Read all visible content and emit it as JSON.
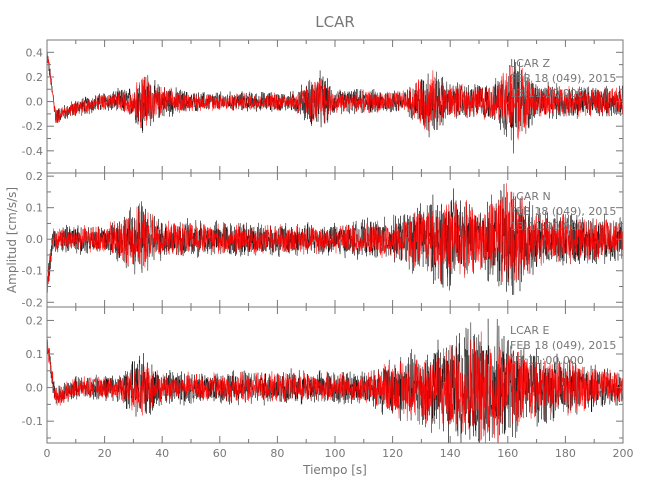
{
  "chart_data": {
    "type": "line",
    "title": "LCAR",
    "xlabel": "Tiempo [s]",
    "ylabel": "Amplitud [cm/s/s]",
    "xlim": [
      0,
      200
    ],
    "xticks": [
      "0",
      "20",
      "40",
      "60",
      "80",
      "100",
      "120",
      "140",
      "160",
      "180",
      "200"
    ],
    "trace_color": "#ff0000",
    "grid": false,
    "panels": [
      {
        "station": "LCAR",
        "component": "Z",
        "date": "FEB 18 (049), 2015",
        "time": "13:11:00.000",
        "ylim": [
          -0.58,
          0.5
        ],
        "yticks": [
          "0.4",
          "0.2",
          "0.0",
          "-0.2",
          "-0.4"
        ],
        "ytick_values": [
          0.4,
          0.2,
          0.0,
          -0.2,
          -0.4
        ],
        "envelope": [
          [
            0,
            0.06
          ],
          [
            20,
            0.08
          ],
          [
            30,
            0.12
          ],
          [
            33,
            0.3
          ],
          [
            38,
            0.15
          ],
          [
            50,
            0.08
          ],
          [
            85,
            0.08
          ],
          [
            95,
            0.25
          ],
          [
            100,
            0.1
          ],
          [
            125,
            0.1
          ],
          [
            133,
            0.3
          ],
          [
            140,
            0.15
          ],
          [
            155,
            0.15
          ],
          [
            162,
            0.4
          ],
          [
            170,
            0.15
          ],
          [
            200,
            0.12
          ]
        ],
        "offset": [
          [
            0,
            0.4
          ],
          [
            3,
            -0.12
          ],
          [
            10,
            -0.05
          ],
          [
            20,
            0
          ],
          [
            200,
            0
          ]
        ]
      },
      {
        "station": "LCAR",
        "component": "N",
        "date": "FEB 18 (049), 2015",
        "time": "13:11:00.000",
        "ylim": [
          -0.215,
          0.21
        ],
        "yticks": [
          "0.2",
          "0.1",
          "0.0",
          "-0.1",
          "-0.2"
        ],
        "ytick_values": [
          0.2,
          0.1,
          0.0,
          -0.1,
          -0.2
        ],
        "envelope": [
          [
            0,
            0.04
          ],
          [
            20,
            0.05
          ],
          [
            33,
            0.12
          ],
          [
            40,
            0.06
          ],
          [
            100,
            0.05
          ],
          [
            120,
            0.07
          ],
          [
            140,
            0.16
          ],
          [
            150,
            0.1
          ],
          [
            160,
            0.2
          ],
          [
            170,
            0.09
          ],
          [
            200,
            0.07
          ]
        ],
        "offset": [
          [
            0,
            -0.15
          ],
          [
            2,
            0
          ],
          [
            200,
            0
          ]
        ]
      },
      {
        "station": "LCAR",
        "component": "E",
        "date": "FEB 18 (049), 2015",
        "time": "13:11:00.000",
        "ylim": [
          -0.165,
          0.24
        ],
        "yticks": [
          "0.2",
          "0.1",
          "0.0",
          "-0.1"
        ],
        "ytick_values": [
          0.2,
          0.1,
          0.0,
          -0.1
        ],
        "envelope": [
          [
            0,
            0.03
          ],
          [
            25,
            0.04
          ],
          [
            33,
            0.1
          ],
          [
            40,
            0.05
          ],
          [
            110,
            0.05
          ],
          [
            120,
            0.09
          ],
          [
            140,
            0.15
          ],
          [
            155,
            0.2
          ],
          [
            165,
            0.12
          ],
          [
            200,
            0.05
          ]
        ],
        "offset": [
          [
            0,
            0.13
          ],
          [
            3,
            -0.03
          ],
          [
            10,
            0
          ],
          [
            200,
            0
          ]
        ]
      }
    ]
  }
}
